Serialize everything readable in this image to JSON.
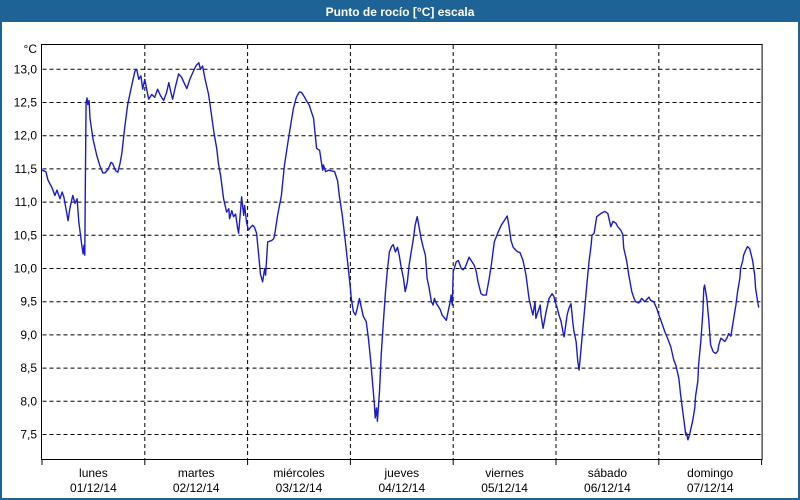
{
  "window": {
    "title": "Punto de rocío [°C] escala",
    "titlebar_color": "#1e6396",
    "border_color": "#1e6396",
    "title_text_color": "#ffffff"
  },
  "chart_data": {
    "type": "line",
    "title": "Punto de rocío [°C] escala",
    "series_name": "Punto de rocío",
    "unit_label": "°C",
    "line_color": "#1c1cc8",
    "grid": "dashed horizontal at each 0.5 °C, dashed vertical at day boundaries",
    "legend": "none",
    "ylim": [
      7.5,
      13.0
    ],
    "y_ticks": [
      {
        "label": "13,0",
        "value": 13.0
      },
      {
        "label": "12,5",
        "value": 12.5
      },
      {
        "label": "12,0",
        "value": 12.0
      },
      {
        "label": "11,5",
        "value": 11.5
      },
      {
        "label": "11,0",
        "value": 11.0
      },
      {
        "label": "10,5",
        "value": 10.5
      },
      {
        "label": "10,0",
        "value": 10.0
      },
      {
        "label": "9,5",
        "value": 9.5
      },
      {
        "label": "9,0",
        "value": 9.0
      },
      {
        "label": "8,5",
        "value": 8.5
      },
      {
        "label": "8,0",
        "value": 8.0
      },
      {
        "label": "7,5",
        "value": 7.5
      }
    ],
    "x_days": [
      {
        "name": "lunes",
        "date": "01/12/14"
      },
      {
        "name": "martes",
        "date": "02/12/14"
      },
      {
        "name": "miércoles",
        "date": "03/12/14"
      },
      {
        "name": "jueves",
        "date": "04/12/14"
      },
      {
        "name": "viernes",
        "date": "05/12/14"
      },
      {
        "name": "sábado",
        "date": "06/12/14"
      },
      {
        "name": "domingo",
        "date": "07/12/14"
      }
    ],
    "x_unit": "hours since lunes 01/12/14 00:00",
    "points": [
      [
        0,
        11.48
      ],
      [
        0.9,
        11.46
      ],
      [
        1.4,
        11.33
      ],
      [
        2.3,
        11.22
      ],
      [
        3.0,
        11.1
      ],
      [
        3.5,
        11.18
      ],
      [
        4.2,
        11.05
      ],
      [
        4.7,
        11.15
      ],
      [
        5.1,
        11.08
      ],
      [
        5.8,
        10.83
      ],
      [
        6.1,
        10.72
      ],
      [
        6.5,
        10.9
      ],
      [
        7.0,
        11.05
      ],
      [
        7.2,
        11.1
      ],
      [
        7.7,
        10.98
      ],
      [
        8.2,
        11.05
      ],
      [
        8.6,
        10.7
      ],
      [
        8.9,
        10.55
      ],
      [
        9.3,
        10.35
      ],
      [
        9.6,
        10.22
      ],
      [
        9.8,
        10.35
      ],
      [
        10.0,
        10.2
      ],
      [
        10.1,
        11.2
      ],
      [
        10.3,
        12.5
      ],
      [
        10.5,
        12.57
      ],
      [
        10.7,
        12.47
      ],
      [
        11.0,
        12.53
      ],
      [
        11.2,
        12.26
      ],
      [
        11.9,
        11.95
      ],
      [
        12.8,
        11.7
      ],
      [
        13.5,
        11.55
      ],
      [
        14.2,
        11.44
      ],
      [
        14.7,
        11.44
      ],
      [
        15.4,
        11.49
      ],
      [
        16.1,
        11.6
      ],
      [
        16.5,
        11.58
      ],
      [
        17.0,
        11.5
      ],
      [
        17.2,
        11.47
      ],
      [
        17.7,
        11.45
      ],
      [
        18.2,
        11.58
      ],
      [
        18.6,
        11.72
      ],
      [
        19.3,
        12.12
      ],
      [
        20.0,
        12.47
      ],
      [
        21.0,
        12.77
      ],
      [
        21.7,
        12.97
      ],
      [
        22.1,
        13.0
      ],
      [
        22.6,
        12.85
      ],
      [
        23.1,
        12.9
      ],
      [
        23.5,
        12.7
      ],
      [
        24.0,
        12.85
      ],
      [
        24.5,
        12.68
      ],
      [
        24.9,
        12.55
      ],
      [
        25.6,
        12.62
      ],
      [
        26.3,
        12.58
      ],
      [
        27.0,
        12.7
      ],
      [
        27.7,
        12.6
      ],
      [
        28.4,
        12.53
      ],
      [
        29.1,
        12.65
      ],
      [
        29.6,
        12.8
      ],
      [
        30.1,
        12.65
      ],
      [
        30.5,
        12.55
      ],
      [
        31.2,
        12.75
      ],
      [
        31.9,
        12.93
      ],
      [
        32.6,
        12.88
      ],
      [
        33.3,
        12.78
      ],
      [
        33.8,
        12.71
      ],
      [
        34.5,
        12.85
      ],
      [
        35.2,
        12.95
      ],
      [
        35.9,
        13.05
      ],
      [
        36.6,
        13.1
      ],
      [
        37.0,
        13.0
      ],
      [
        37.5,
        13.05
      ],
      [
        38.0,
        12.87
      ],
      [
        38.9,
        12.62
      ],
      [
        39.6,
        12.3
      ],
      [
        40.1,
        12.06
      ],
      [
        40.8,
        11.8
      ],
      [
        41.2,
        11.57
      ],
      [
        41.7,
        11.4
      ],
      [
        42.4,
        11.05
      ],
      [
        43.1,
        10.85
      ],
      [
        43.6,
        10.9
      ],
      [
        43.8,
        10.75
      ],
      [
        44.3,
        10.87
      ],
      [
        44.7,
        10.78
      ],
      [
        45.2,
        10.82
      ],
      [
        45.7,
        10.6
      ],
      [
        45.9,
        10.53
      ],
      [
        46.4,
        10.9
      ],
      [
        46.6,
        11.08
      ],
      [
        47.1,
        10.8
      ],
      [
        47.3,
        10.95
      ],
      [
        47.8,
        10.68
      ],
      [
        48.2,
        10.58
      ],
      [
        48.7,
        10.62
      ],
      [
        49.2,
        10.65
      ],
      [
        49.6,
        10.62
      ],
      [
        50.1,
        10.53
      ],
      [
        50.6,
        10.2
      ],
      [
        51.0,
        9.92
      ],
      [
        51.5,
        9.8
      ],
      [
        52.0,
        10.0
      ],
      [
        52.2,
        9.9
      ],
      [
        52.7,
        10.4
      ],
      [
        53.1,
        10.41
      ],
      [
        53.6,
        10.42
      ],
      [
        54.1,
        10.45
      ],
      [
        54.3,
        10.5
      ],
      [
        55.0,
        10.8
      ],
      [
        55.9,
        11.1
      ],
      [
        56.6,
        11.55
      ],
      [
        57.3,
        11.85
      ],
      [
        57.8,
        12.06
      ],
      [
        58.7,
        12.41
      ],
      [
        59.4,
        12.58
      ],
      [
        60.1,
        12.66
      ],
      [
        60.6,
        12.65
      ],
      [
        61.3,
        12.58
      ],
      [
        61.7,
        12.53
      ],
      [
        62.4,
        12.46
      ],
      [
        62.9,
        12.36
      ],
      [
        63.4,
        12.26
      ],
      [
        63.8,
        12.0
      ],
      [
        64.1,
        11.81
      ],
      [
        64.5,
        11.79
      ],
      [
        64.8,
        11.78
      ],
      [
        65.5,
        11.48
      ],
      [
        65.7,
        11.56
      ],
      [
        66.2,
        11.46
      ],
      [
        66.9,
        11.48
      ],
      [
        67.6,
        11.47
      ],
      [
        68.3,
        11.46
      ],
      [
        69.0,
        11.32
      ],
      [
        69.4,
        11.1
      ],
      [
        70.1,
        10.8
      ],
      [
        70.6,
        10.53
      ],
      [
        71.1,
        10.25
      ],
      [
        71.5,
        10.0
      ],
      [
        72.0,
        9.7
      ],
      [
        72.2,
        9.55
      ],
      [
        72.7,
        9.35
      ],
      [
        73.2,
        9.3
      ],
      [
        73.6,
        9.4
      ],
      [
        74.1,
        9.55
      ],
      [
        74.6,
        9.4
      ],
      [
        75.0,
        9.28
      ],
      [
        75.7,
        9.2
      ],
      [
        76.2,
        8.95
      ],
      [
        76.7,
        8.64
      ],
      [
        77.1,
        8.34
      ],
      [
        77.6,
        7.95
      ],
      [
        77.8,
        7.75
      ],
      [
        78.1,
        7.9
      ],
      [
        78.3,
        7.7
      ],
      [
        78.8,
        8.15
      ],
      [
        79.2,
        8.7
      ],
      [
        79.7,
        9.2
      ],
      [
        80.2,
        9.65
      ],
      [
        80.6,
        9.95
      ],
      [
        81.1,
        10.25
      ],
      [
        81.6,
        10.33
      ],
      [
        82.0,
        10.36
      ],
      [
        82.5,
        10.25
      ],
      [
        83.0,
        10.32
      ],
      [
        83.4,
        10.2
      ],
      [
        83.9,
        10.0
      ],
      [
        84.4,
        9.85
      ],
      [
        84.8,
        9.65
      ],
      [
        85.3,
        9.8
      ],
      [
        85.7,
        10.05
      ],
      [
        86.2,
        10.25
      ],
      [
        86.7,
        10.45
      ],
      [
        87.1,
        10.65
      ],
      [
        87.6,
        10.78
      ],
      [
        88.1,
        10.6
      ],
      [
        88.5,
        10.45
      ],
      [
        89.0,
        10.32
      ],
      [
        89.5,
        10.2
      ],
      [
        89.9,
        9.85
      ],
      [
        90.4,
        9.7
      ],
      [
        90.9,
        9.5
      ],
      [
        91.3,
        9.45
      ],
      [
        91.6,
        9.55
      ],
      [
        92.0,
        9.48
      ],
      [
        92.5,
        9.43
      ],
      [
        93.0,
        9.38
      ],
      [
        93.4,
        9.3
      ],
      [
        93.9,
        9.26
      ],
      [
        94.4,
        9.22
      ],
      [
        94.8,
        9.35
      ],
      [
        95.3,
        9.5
      ],
      [
        95.5,
        9.6
      ],
      [
        95.8,
        9.45
      ],
      [
        96.0,
        9.95
      ],
      [
        96.7,
        10.1
      ],
      [
        97.2,
        10.12
      ],
      [
        97.9,
        10.0
      ],
      [
        98.3,
        9.98
      ],
      [
        98.8,
        10.02
      ],
      [
        99.3,
        10.1
      ],
      [
        99.7,
        10.17
      ],
      [
        100.2,
        10.12
      ],
      [
        100.9,
        10.05
      ],
      [
        101.4,
        9.95
      ],
      [
        101.8,
        9.8
      ],
      [
        102.5,
        9.62
      ],
      [
        103.0,
        9.6
      ],
      [
        103.7,
        9.6
      ],
      [
        104.4,
        9.85
      ],
      [
        104.9,
        10.05
      ],
      [
        105.6,
        10.4
      ],
      [
        106.5,
        10.55
      ],
      [
        107.2,
        10.65
      ],
      [
        107.9,
        10.72
      ],
      [
        108.6,
        10.79
      ],
      [
        109.0,
        10.65
      ],
      [
        109.5,
        10.42
      ],
      [
        110.0,
        10.32
      ],
      [
        110.7,
        10.27
      ],
      [
        111.1,
        10.25
      ],
      [
        111.6,
        10.24
      ],
      [
        112.3,
        10.12
      ],
      [
        113.0,
        9.9
      ],
      [
        113.7,
        9.55
      ],
      [
        114.2,
        9.4
      ],
      [
        114.6,
        9.3
      ],
      [
        115.1,
        9.5
      ],
      [
        115.3,
        9.25
      ],
      [
        115.8,
        9.35
      ],
      [
        116.3,
        9.45
      ],
      [
        116.5,
        9.3
      ],
      [
        117.0,
        9.1
      ],
      [
        117.7,
        9.35
      ],
      [
        118.4,
        9.55
      ],
      [
        119.1,
        9.62
      ],
      [
        119.5,
        9.58
      ],
      [
        119.8,
        9.5
      ],
      [
        120.2,
        9.42
      ],
      [
        120.7,
        9.3
      ],
      [
        121.2,
        9.2
      ],
      [
        121.6,
        9.05
      ],
      [
        121.9,
        8.97
      ],
      [
        122.6,
        9.3
      ],
      [
        123.0,
        9.4
      ],
      [
        123.5,
        9.47
      ],
      [
        124.0,
        9.15
      ],
      [
        124.2,
        9.05
      ],
      [
        124.7,
        8.9
      ],
      [
        125.1,
        8.6
      ],
      [
        125.4,
        8.47
      ],
      [
        125.8,
        8.75
      ],
      [
        126.5,
        9.25
      ],
      [
        127.2,
        9.75
      ],
      [
        127.7,
        10.1
      ],
      [
        128.2,
        10.35
      ],
      [
        128.4,
        10.5
      ],
      [
        128.9,
        10.53
      ],
      [
        129.5,
        10.78
      ],
      [
        130.5,
        10.83
      ],
      [
        131.4,
        10.86
      ],
      [
        132.1,
        10.83
      ],
      [
        132.8,
        10.63
      ],
      [
        133.3,
        10.71
      ],
      [
        134.0,
        10.68
      ],
      [
        134.4,
        10.63
      ],
      [
        135.1,
        10.58
      ],
      [
        135.6,
        10.51
      ],
      [
        135.8,
        10.31
      ],
      [
        136.5,
        10.11
      ],
      [
        137.0,
        9.9
      ],
      [
        137.7,
        9.65
      ],
      [
        138.2,
        9.55
      ],
      [
        138.6,
        9.5
      ],
      [
        139.3,
        9.48
      ],
      [
        140.0,
        9.55
      ],
      [
        140.7,
        9.5
      ],
      [
        141.7,
        9.57
      ],
      [
        142.1,
        9.52
      ],
      [
        142.8,
        9.5
      ],
      [
        143.5,
        9.4
      ],
      [
        144.0,
        9.3
      ],
      [
        144.5,
        9.22
      ],
      [
        145.4,
        9.05
      ],
      [
        146.1,
        8.94
      ],
      [
        146.8,
        8.82
      ],
      [
        147.5,
        8.62
      ],
      [
        148.0,
        8.54
      ],
      [
        148.7,
        8.34
      ],
      [
        149.1,
        8.1
      ],
      [
        149.6,
        7.84
      ],
      [
        150.1,
        7.6
      ],
      [
        150.3,
        7.49
      ],
      [
        150.5,
        7.52
      ],
      [
        150.8,
        7.42
      ],
      [
        151.2,
        7.5
      ],
      [
        151.9,
        7.7
      ],
      [
        152.4,
        7.9
      ],
      [
        152.6,
        8.08
      ],
      [
        153.1,
        8.3
      ],
      [
        153.3,
        8.55
      ],
      [
        153.8,
        8.9
      ],
      [
        154.3,
        9.35
      ],
      [
        154.5,
        9.7
      ],
      [
        154.7,
        9.75
      ],
      [
        155.2,
        9.55
      ],
      [
        155.7,
        9.2
      ],
      [
        156.1,
        8.85
      ],
      [
        156.6,
        8.76
      ],
      [
        156.8,
        8.74
      ],
      [
        157.3,
        8.72
      ],
      [
        157.8,
        8.76
      ],
      [
        158.0,
        8.85
      ],
      [
        158.5,
        8.95
      ],
      [
        158.9,
        8.93
      ],
      [
        159.4,
        8.9
      ],
      [
        159.9,
        8.95
      ],
      [
        160.3,
        9.02
      ],
      [
        160.8,
        8.98
      ],
      [
        161.0,
        9.05
      ],
      [
        161.5,
        9.26
      ],
      [
        162.0,
        9.45
      ],
      [
        162.4,
        9.65
      ],
      [
        162.9,
        9.85
      ],
      [
        163.1,
        10.0
      ],
      [
        163.6,
        10.12
      ],
      [
        163.8,
        10.2
      ],
      [
        164.3,
        10.28
      ],
      [
        164.7,
        10.33
      ],
      [
        165.2,
        10.3
      ],
      [
        165.4,
        10.25
      ],
      [
        165.9,
        10.12
      ],
      [
        166.4,
        9.9
      ],
      [
        166.6,
        9.7
      ],
      [
        167.1,
        9.5
      ],
      [
        167.3,
        9.42
      ]
    ]
  }
}
